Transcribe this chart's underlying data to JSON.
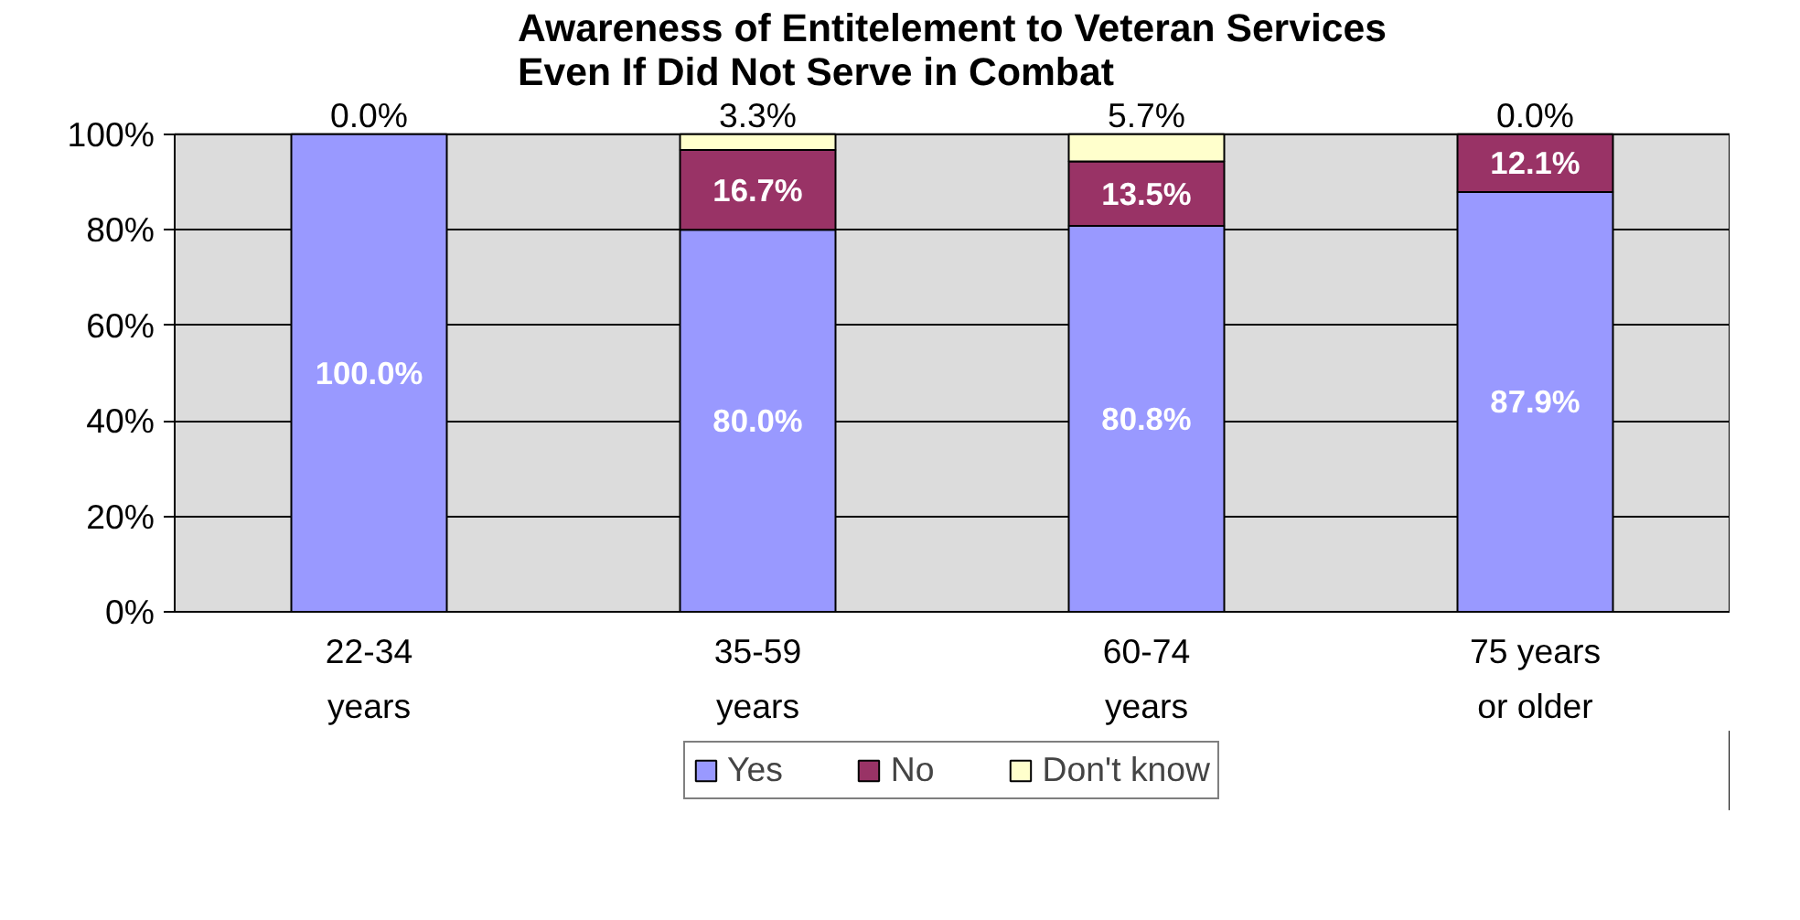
{
  "chart_data": {
    "type": "bar",
    "stacked": true,
    "title": "Awareness of Entitelement to Veteran Services\nEven If Did Not Serve in Combat",
    "categories": [
      "22-34\nyears",
      "35-59\nyears",
      "60-74\nyears",
      "75 years\nor older"
    ],
    "series": [
      {
        "name": "Yes",
        "color": "#9999ff",
        "values": [
          100.0,
          80.0,
          80.8,
          87.9
        ],
        "value_labels": [
          "100.0%",
          "80.0%",
          "80.8%",
          "87.9%"
        ]
      },
      {
        "name": "No",
        "color": "#993366",
        "values": [
          0.0,
          16.7,
          13.5,
          12.1
        ],
        "value_labels": [
          null,
          "16.7%",
          "13.5%",
          "12.1%"
        ]
      },
      {
        "name": "Don't know",
        "color": "#ffffcc",
        "values": [
          0.0,
          3.3,
          5.7,
          0.0
        ],
        "value_labels": [
          "0.0%",
          "3.3%",
          "5.7%",
          "0.0%"
        ]
      }
    ],
    "ylim": [
      0,
      100
    ],
    "yticks": [
      {
        "value": 0,
        "label": "0%"
      },
      {
        "value": 20,
        "label": "20%"
      },
      {
        "value": 40,
        "label": "40%"
      },
      {
        "value": 60,
        "label": "60%"
      },
      {
        "value": 80,
        "label": "80%"
      },
      {
        "value": 100,
        "label": "100%"
      }
    ],
    "grid": "y",
    "legend": "bottom"
  }
}
